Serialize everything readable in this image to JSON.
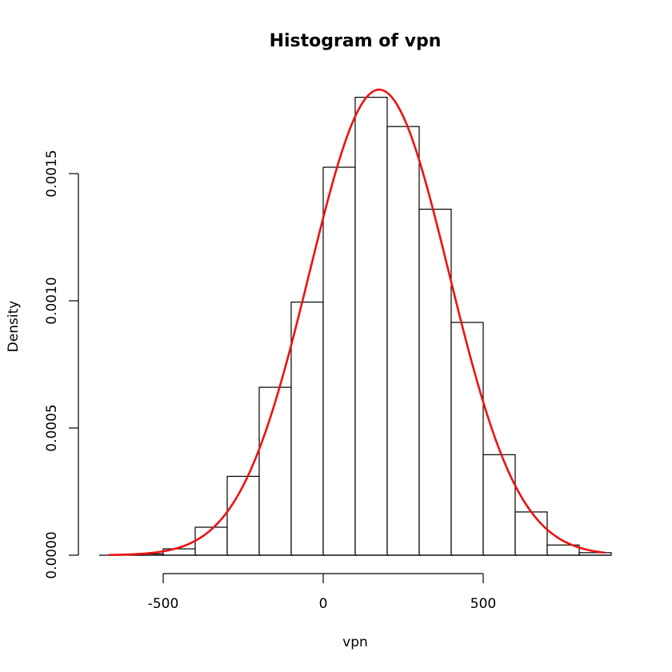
{
  "chart_data": {
    "type": "bar",
    "title": "Histogram of vpn",
    "xlabel": "vpn",
    "ylabel": "Density",
    "bins": [
      {
        "x0": -700,
        "x1": -600,
        "density": 0.0
      },
      {
        "x0": -600,
        "x1": -500,
        "density": 5e-06
      },
      {
        "x0": -500,
        "x1": -400,
        "density": 2.5e-05
      },
      {
        "x0": -400,
        "x1": -300,
        "density": 0.00011
      },
      {
        "x0": -300,
        "x1": -200,
        "density": 0.00031
      },
      {
        "x0": -200,
        "x1": -100,
        "density": 0.00066
      },
      {
        "x0": -100,
        "x1": 0,
        "density": 0.000995
      },
      {
        "x0": 0,
        "x1": 100,
        "density": 0.001525
      },
      {
        "x0": 100,
        "x1": 200,
        "density": 0.0018
      },
      {
        "x0": 200,
        "x1": 300,
        "density": 0.001685
      },
      {
        "x0": 300,
        "x1": 400,
        "density": 0.00136
      },
      {
        "x0": 400,
        "x1": 500,
        "density": 0.000915
      },
      {
        "x0": 500,
        "x1": 600,
        "density": 0.000395
      },
      {
        "x0": 600,
        "x1": 700,
        "density": 0.00017
      },
      {
        "x0": 700,
        "x1": 800,
        "density": 4e-05
      },
      {
        "x0": 800,
        "x1": 900,
        "density": 1e-05
      }
    ],
    "density_curve": {
      "distribution": "normal",
      "mean": 175,
      "sd": 218,
      "x_range": [
        -670,
        880
      ],
      "color": "#ee1111"
    },
    "xticks": [
      -500,
      0,
      500
    ],
    "xtick_labels": [
      "-500",
      "0",
      "500"
    ],
    "yticks": [
      0,
      0.0005,
      0.001,
      0.0015
    ],
    "ytick_labels": [
      "0.0000",
      "0.0005",
      "0.0010",
      "0.0015"
    ],
    "xlim": [
      -700,
      900
    ],
    "ylim": [
      0,
      0.0018
    ],
    "grid": false
  }
}
